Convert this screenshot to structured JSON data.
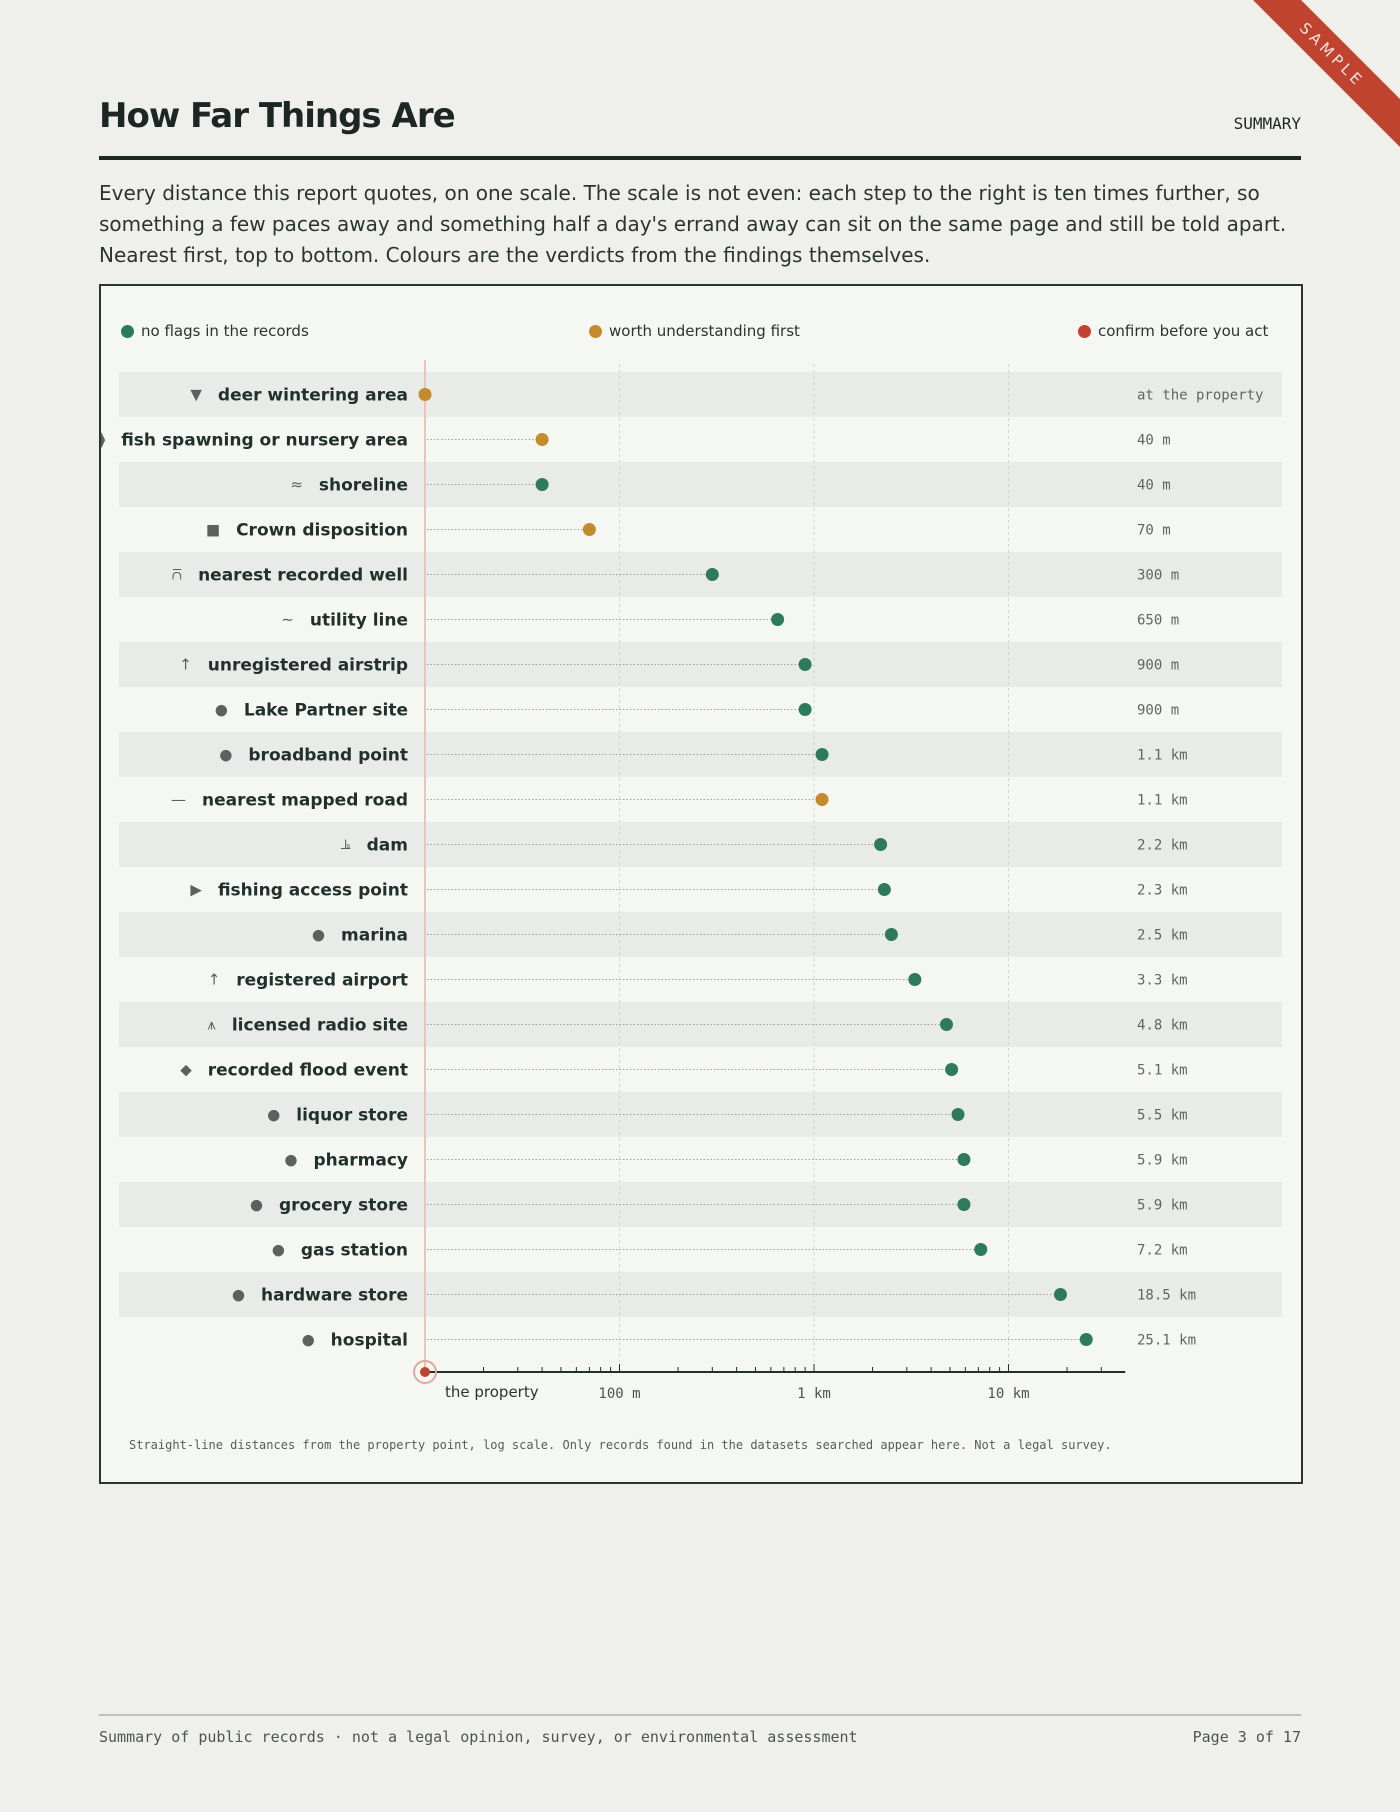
{
  "stamp": "SAMPLE",
  "header": {
    "title": "How Far Things Are",
    "section": "SUMMARY"
  },
  "intro": "Every distance this report quotes, on one scale. The scale is not even: each step to the right is ten times further, so something a few paces away and something half a day's errand away can sit on the same page and still be told apart. Nearest first, top to bottom. Colours are the verdicts from the findings themselves.",
  "legend": [
    {
      "label": "no flags in the records",
      "color": "#2e7a5c"
    },
    {
      "label": "worth understanding first",
      "color": "#c48a2e"
    },
    {
      "label": "confirm before you act",
      "color": "#c0432f"
    }
  ],
  "chart_data": {
    "type": "scatter",
    "x_scale": "log",
    "x_unit": "m",
    "x_ticks": [
      {
        "value": 100,
        "label": "100 m"
      },
      {
        "value": 1000,
        "label": "1 km"
      },
      {
        "value": 10000,
        "label": "10 km"
      }
    ],
    "origin_label": "the property",
    "rows": [
      {
        "name": "deer wintering area",
        "icon": "triangle-down-icon",
        "glyph": "▼",
        "distance_m": 0,
        "distance_label": "at the property",
        "verdict": "worth understanding first"
      },
      {
        "name": "fish spawning or nursery area",
        "icon": "fish-icon",
        "glyph": "⧫",
        "distance_m": 40,
        "distance_label": "40 m",
        "verdict": "worth understanding first"
      },
      {
        "name": "shoreline",
        "icon": "water-icon",
        "glyph": "≈",
        "distance_m": 40,
        "distance_label": "40 m",
        "verdict": "no flags in the records"
      },
      {
        "name": "Crown disposition",
        "icon": "square-icon",
        "glyph": "■",
        "distance_m": 70,
        "distance_label": "70 m",
        "verdict": "worth understanding first"
      },
      {
        "name": "nearest recorded well",
        "icon": "well-icon",
        "glyph": "⩃",
        "distance_m": 300,
        "distance_label": "300 m",
        "verdict": "no flags in the records"
      },
      {
        "name": "utility line",
        "icon": "utility-line-icon",
        "glyph": "∼",
        "distance_m": 650,
        "distance_label": "650 m",
        "verdict": "no flags in the records"
      },
      {
        "name": "unregistered airstrip",
        "icon": "airstrip-icon",
        "glyph": "↑",
        "distance_m": 900,
        "distance_label": "900 m",
        "verdict": "no flags in the records"
      },
      {
        "name": "Lake Partner site",
        "icon": "dot-icon",
        "glyph": "●",
        "distance_m": 900,
        "distance_label": "900 m",
        "verdict": "no flags in the records"
      },
      {
        "name": "broadband point",
        "icon": "dot-icon",
        "glyph": "●",
        "distance_m": 1100,
        "distance_label": "1.1 km",
        "verdict": "no flags in the records"
      },
      {
        "name": "nearest mapped road",
        "icon": "road-icon",
        "glyph": "—",
        "distance_m": 1100,
        "distance_label": "1.1 km",
        "verdict": "worth understanding first"
      },
      {
        "name": "dam",
        "icon": "dam-icon",
        "glyph": "⫡",
        "distance_m": 2200,
        "distance_label": "2.2 km",
        "verdict": "no flags in the records"
      },
      {
        "name": "fishing access point",
        "icon": "triangle-right-icon",
        "glyph": "▶",
        "distance_m": 2300,
        "distance_label": "2.3 km",
        "verdict": "no flags in the records"
      },
      {
        "name": "marina",
        "icon": "dot-icon",
        "glyph": "●",
        "distance_m": 2500,
        "distance_label": "2.5 km",
        "verdict": "no flags in the records"
      },
      {
        "name": "registered airport",
        "icon": "airport-icon",
        "glyph": "↑",
        "distance_m": 3300,
        "distance_label": "3.3 km",
        "verdict": "no flags in the records"
      },
      {
        "name": "licensed radio site",
        "icon": "radio-tower-icon",
        "glyph": "⩚",
        "distance_m": 4800,
        "distance_label": "4.8 km",
        "verdict": "no flags in the records"
      },
      {
        "name": "recorded flood event",
        "icon": "diamond-icon",
        "glyph": "◆",
        "distance_m": 5100,
        "distance_label": "5.1 km",
        "verdict": "no flags in the records"
      },
      {
        "name": "liquor store",
        "icon": "dot-icon",
        "glyph": "●",
        "distance_m": 5500,
        "distance_label": "5.5 km",
        "verdict": "no flags in the records"
      },
      {
        "name": "pharmacy",
        "icon": "dot-icon",
        "glyph": "●",
        "distance_m": 5900,
        "distance_label": "5.9 km",
        "verdict": "no flags in the records"
      },
      {
        "name": "grocery store",
        "icon": "dot-icon",
        "glyph": "●",
        "distance_m": 5900,
        "distance_label": "5.9 km",
        "verdict": "no flags in the records"
      },
      {
        "name": "gas station",
        "icon": "dot-icon",
        "glyph": "●",
        "distance_m": 7200,
        "distance_label": "7.2 km",
        "verdict": "no flags in the records"
      },
      {
        "name": "hardware store",
        "icon": "dot-icon",
        "glyph": "●",
        "distance_m": 18500,
        "distance_label": "18.5 km",
        "verdict": "no flags in the records"
      },
      {
        "name": "hospital",
        "icon": "dot-icon",
        "glyph": "●",
        "distance_m": 25100,
        "distance_label": "25.1 km",
        "verdict": "no flags in the records"
      }
    ]
  },
  "footnote": "Straight-line distances from the property point, log scale. Only records found in the datasets searched appear here. Not a legal survey.",
  "footer": {
    "left": "Summary of public records · not a legal opinion, survey, or environmental assessment",
    "right": "Page 3 of 17"
  }
}
